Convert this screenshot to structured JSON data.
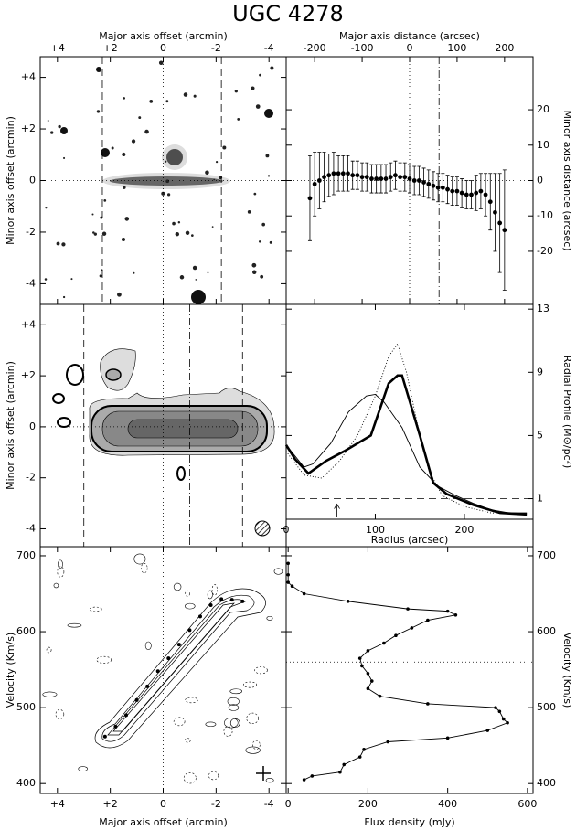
{
  "chart_data": [
    {
      "type": "image",
      "title": "UGC 4278",
      "xlabel": "Major axis offset (arcmin)",
      "ylabel": "Minor axis offset (arcmin)",
      "xlim": [
        4.65,
        -4.65
      ],
      "ylim": [
        -4.8,
        4.8
      ],
      "xticks": [
        {
          "value": 4,
          "label": "+4"
        },
        {
          "value": 2,
          "label": "+2"
        },
        0,
        -2,
        -4
      ],
      "yticks": [
        {
          "value": 4,
          "label": "+4"
        },
        {
          "value": 2,
          "label": "+2"
        },
        0,
        -2,
        -4
      ],
      "vlines": [
        {
          "value": 2.3,
          "style": "dashed"
        },
        {
          "value": -2.2,
          "style": "dashed"
        },
        {
          "value": 0,
          "style": "dotted"
        }
      ],
      "hlines": [
        {
          "value": 0,
          "style": "dotted"
        }
      ]
    },
    {
      "type": "scatter",
      "xlabel": "Major axis distance (arcsec)",
      "ylabel": "Minor axis distance (arcsec)",
      "xlim": [
        -260,
        260
      ],
      "ylim": [
        -35,
        35
      ],
      "xticks": [
        -200,
        -100,
        0,
        100,
        200
      ],
      "yticks": [
        20,
        10,
        0,
        -10,
        -20
      ],
      "x": [
        -210,
        -200,
        -190,
        -180,
        -170,
        -160,
        -150,
        -140,
        -130,
        -120,
        -110,
        -100,
        -90,
        -80,
        -70,
        -60,
        -50,
        -40,
        -30,
        -20,
        -10,
        0,
        10,
        20,
        30,
        40,
        50,
        60,
        70,
        80,
        90,
        100,
        110,
        120,
        130,
        140,
        150,
        160,
        170,
        180,
        190,
        200
      ],
      "values": [
        -5,
        -1,
        0,
        1,
        1.5,
        2,
        2,
        2,
        2,
        1.5,
        1.5,
        1,
        1,
        0.5,
        0.5,
        0.5,
        0.5,
        1,
        1.5,
        1,
        1,
        0.5,
        0,
        0,
        -0.5,
        -1,
        -1.5,
        -2,
        -2,
        -2.5,
        -3,
        -3,
        -3.5,
        -4,
        -4,
        -3.5,
        -3,
        -4,
        -6,
        -9,
        -12,
        -14
      ],
      "errors": [
        12,
        9,
        8,
        7,
        6,
        6,
        5,
        5,
        5,
        4,
        4,
        4,
        4,
        4,
        4,
        4,
        4,
        4,
        4,
        4,
        4,
        4,
        4,
        4,
        4,
        4,
        4,
        4,
        4,
        4,
        4,
        4,
        4,
        4,
        4,
        5,
        5,
        6,
        8,
        11,
        14,
        17
      ],
      "color": "#000000",
      "vlines": [
        {
          "value": 0,
          "style": "dotted"
        },
        {
          "value": 62,
          "style": "dashdot"
        }
      ],
      "hlines": [
        {
          "value": 0,
          "style": "dotted"
        }
      ]
    },
    {
      "type": "contour",
      "ylabel": "Minor axis offset (arcmin)",
      "xlim": [
        4.65,
        -4.65
      ],
      "ylim": [
        -4.7,
        4.8
      ],
      "yticks": [
        {
          "value": 4,
          "label": "+4"
        },
        {
          "value": 2,
          "label": "+2"
        },
        0,
        -2,
        -4
      ],
      "vlines": [
        {
          "value": 3.0,
          "style": "dashed"
        },
        {
          "value": -3.0,
          "style": "dashed"
        },
        {
          "value": 0,
          "style": "dotted"
        },
        {
          "value": -1.0,
          "style": "dashdot"
        }
      ],
      "hlines": [
        {
          "value": 0,
          "style": "dotted"
        }
      ]
    },
    {
      "type": "line",
      "xlabel": "Radius (arcsec)",
      "ylabel": "Radial Profile (M⊙/pc²)",
      "xlim": [
        0,
        277
      ],
      "ylim": [
        -0.3,
        13.3
      ],
      "xticks": [
        0,
        100,
        200
      ],
      "yticks": [
        1,
        5,
        9,
        13
      ],
      "series": [
        {
          "style": "thick",
          "color": "#000000",
          "x": [
            0,
            10,
            25,
            45,
            65,
            95,
            115,
            125,
            130,
            150,
            165,
            180,
            210,
            240,
            270
          ],
          "values": [
            4.4,
            3.5,
            2.6,
            3.4,
            4.0,
            5.0,
            8.3,
            8.8,
            8.8,
            5.0,
            2.0,
            1.3,
            0.6,
            0.1,
            0
          ]
        },
        {
          "style": "thin",
          "color": "#000000",
          "x": [
            0,
            20,
            30,
            50,
            70,
            90,
            100,
            110,
            130,
            150,
            170,
            190,
            210,
            230,
            250,
            270
          ],
          "values": [
            4.4,
            3.0,
            3.2,
            4.5,
            6.5,
            7.5,
            7.6,
            7.1,
            5.5,
            3.0,
            1.8,
            1.2,
            0.7,
            0.3,
            0.1,
            0.1
          ]
        },
        {
          "style": "dotted",
          "color": "#000000",
          "x": [
            0,
            20,
            40,
            60,
            80,
            100,
            115,
            125,
            135,
            150,
            160,
            175,
            200,
            230,
            270
          ],
          "values": [
            4.0,
            2.5,
            2.3,
            3.4,
            5.0,
            7.5,
            10.0,
            10.8,
            9.0,
            5.0,
            2.8,
            1.2,
            0.5,
            0.1,
            0
          ]
        }
      ],
      "hlines": [
        {
          "value": 1,
          "style": "dashed"
        }
      ],
      "arrow_x": 57
    },
    {
      "type": "contour",
      "xlabel": "Major axis offset (arcmin)",
      "ylabel": "Velocity (Km/s)",
      "xlim": [
        4.65,
        -4.65
      ],
      "ylim": [
        387,
        712
      ],
      "xticks": [
        {
          "value": 4,
          "label": "+4"
        },
        {
          "value": 2,
          "label": "+2"
        },
        0,
        -2,
        -4
      ],
      "yticks": [
        400,
        500,
        600,
        700
      ],
      "series": [
        {
          "color": "#000000",
          "x": [
            2.2,
            1.8,
            1.4,
            1.0,
            0.6,
            0.2,
            -0.2,
            -0.6,
            -1.0,
            -1.4,
            -1.8,
            -2.2,
            -2.6,
            -3.0
          ],
          "values": [
            462,
            475,
            490,
            510,
            528,
            548,
            565,
            583,
            602,
            620,
            635,
            643,
            642,
            640
          ]
        }
      ],
      "vlines": [
        {
          "value": 0,
          "style": "dotted"
        }
      ]
    },
    {
      "type": "line",
      "xlabel": "Flux density (mJy)",
      "ylabel": "Velocity (Km/s)",
      "xlim": [
        -5,
        614
      ],
      "ylim": [
        387,
        712
      ],
      "xticks": [
        0,
        200,
        400,
        600
      ],
      "yticks": [
        400,
        500,
        600,
        700
      ],
      "series": [
        {
          "style": "thin",
          "markers": true,
          "color": "#000000",
          "x": [
            0,
            0,
            0,
            10,
            40,
            150,
            300,
            400,
            420,
            350,
            310,
            270,
            240,
            200,
            180,
            185,
            200,
            210,
            200,
            230,
            350,
            520,
            530,
            540,
            550,
            500,
            400,
            250,
            190,
            180,
            140,
            130,
            60,
            40
          ],
          "values": [
            690,
            675,
            665,
            660,
            650,
            640,
            630,
            627,
            622,
            615,
            605,
            595,
            585,
            575,
            565,
            555,
            545,
            535,
            525,
            515,
            505,
            500,
            495,
            485,
            480,
            470,
            460,
            455,
            445,
            435,
            425,
            415,
            410,
            405
          ]
        }
      ],
      "hlines": [
        {
          "value": 560,
          "style": "dotted"
        }
      ]
    }
  ]
}
